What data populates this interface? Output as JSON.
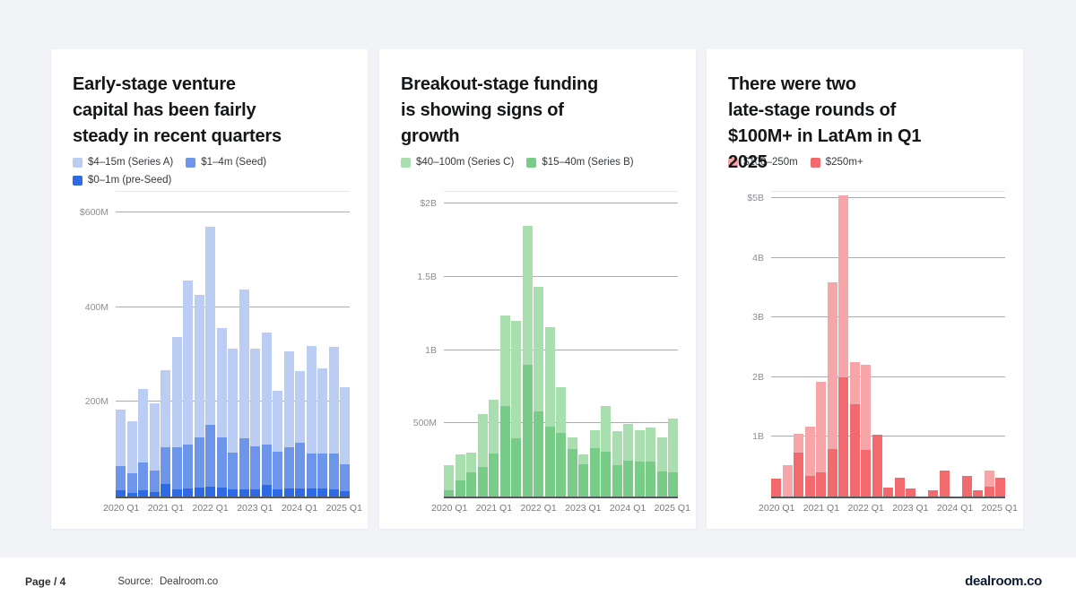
{
  "page": {
    "background_color": "#f1f3f6",
    "card_color": "#ffffff"
  },
  "footer": {
    "page_label": "Page / 4",
    "source_label": "Source:",
    "source_value": "Dealroom.co",
    "logo_text": "dealroom.co"
  },
  "chart_data": [
    {
      "type": "stacked-bar",
      "title_lines": [
        "Early-stage venture",
        "capital has been fairly",
        "steady in recent quarters"
      ],
      "unit": "USD millions",
      "ymax": 650,
      "gridlines": [
        {
          "label": "$600M",
          "value": 600
        },
        {
          "label": "400M",
          "value": 400
        },
        {
          "label": "200M",
          "value": 200
        }
      ],
      "categories": [
        "2020 Q1",
        "2020 Q2",
        "2020 Q3",
        "2020 Q4",
        "2021 Q1",
        "2021 Q2",
        "2021 Q3",
        "2021 Q4",
        "2022 Q1",
        "2022 Q2",
        "2022 Q3",
        "2022 Q4",
        "2023 Q1",
        "2023 Q2",
        "2023 Q3",
        "2023 Q4",
        "2024 Q1",
        "2024 Q2",
        "2024 Q3",
        "2024 Q4",
        "2025 Q1"
      ],
      "x_ticks": [
        {
          "label": "2020 Q1",
          "slot": 0
        },
        {
          "label": "2021 Q1",
          "slot": 4
        },
        {
          "label": "2022 Q1",
          "slot": 8
        },
        {
          "label": "2023 Q1",
          "slot": 12
        },
        {
          "label": "2024 Q1",
          "slot": 16
        },
        {
          "label": "2025 Q1",
          "slot": 20
        }
      ],
      "legend": [
        {
          "label": "$4–15m (Series A)",
          "color": "#bccdf3"
        },
        {
          "label": "$1–4m (Seed)",
          "color": "#6d96ea"
        },
        {
          "label": "$0–1m (pre-Seed)",
          "color": "#2d6ae4"
        }
      ],
      "series": [
        {
          "name": "$0–1m (pre-Seed)",
          "color": "#2d6ae4",
          "values": [
            13,
            8,
            13,
            10,
            26,
            15,
            17,
            19,
            21,
            19,
            15,
            15,
            16,
            24,
            16,
            18,
            18,
            17,
            17,
            15,
            12
          ]
        },
        {
          "name": "$1–4m (Seed)",
          "color": "#6d96ea",
          "values": [
            51,
            41,
            59,
            45,
            78,
            90,
            92,
            106,
            131,
            107,
            78,
            108,
            91,
            85,
            80,
            88,
            97,
            73,
            73,
            75,
            57
          ]
        },
        {
          "name": "$4–15m (Series A)",
          "color": "#bccdf3",
          "values": [
            119,
            109,
            155,
            143,
            163,
            233,
            347,
            301,
            419,
            232,
            219,
            315,
            207,
            236,
            128,
            203,
            152,
            228,
            180,
            226,
            163
          ]
        }
      ]
    },
    {
      "type": "stacked-bar",
      "title_lines": [
        "Breakout-stage funding",
        "is showing signs of",
        "growth"
      ],
      "unit": "USD millions",
      "ymax": 2100,
      "gridlines": [
        {
          "label": "$2B",
          "value": 2000
        },
        {
          "label": "1.5B",
          "value": 1500
        },
        {
          "label": "1B",
          "value": 1000
        },
        {
          "label": "500M",
          "value": 500
        }
      ],
      "categories": [
        "2020 Q1",
        "2020 Q2",
        "2020 Q3",
        "2020 Q4",
        "2021 Q1",
        "2021 Q2",
        "2021 Q3",
        "2021 Q4",
        "2022 Q1",
        "2022 Q2",
        "2022 Q3",
        "2022 Q4",
        "2023 Q1",
        "2023 Q2",
        "2023 Q3",
        "2023 Q4",
        "2024 Q1",
        "2024 Q2",
        "2024 Q3",
        "2024 Q4",
        "2025 Q1"
      ],
      "x_ticks": [
        {
          "label": "2020 Q1",
          "slot": 0
        },
        {
          "label": "2021 Q1",
          "slot": 4
        },
        {
          "label": "2022 Q1",
          "slot": 8
        },
        {
          "label": "2023 Q1",
          "slot": 12
        },
        {
          "label": "2024 Q1",
          "slot": 16
        },
        {
          "label": "2025 Q1",
          "slot": 20
        }
      ],
      "legend": [
        {
          "label": "$40–100m (Series C)",
          "color": "#a9dfae"
        },
        {
          "label": "$15–40m (Series B)",
          "color": "#79cc87"
        }
      ],
      "series": [
        {
          "name": "$15–40m (Series B)",
          "color": "#79cc87",
          "values": [
            40,
            112,
            166,
            200,
            292,
            616,
            400,
            900,
            580,
            480,
            436,
            326,
            220,
            332,
            306,
            212,
            246,
            240,
            236,
            172,
            166
          ]
        },
        {
          "name": "$40–100m (Series C)",
          "color": "#a9dfae",
          "values": [
            172,
            178,
            134,
            360,
            370,
            618,
            804,
            950,
            853,
            679,
            312,
            80,
            70,
            120,
            310,
            234,
            250,
            212,
            230,
            234,
            366
          ]
        }
      ]
    },
    {
      "type": "stacked-bar",
      "title_lines": [
        "There were two",
        "late-stage rounds of",
        "$100M+ in LatAm in Q1",
        "2025"
      ],
      "unit": "USD millions",
      "ymax": 5150,
      "gridlines": [
        {
          "label": "$5B",
          "value": 5000
        },
        {
          "label": "4B",
          "value": 4000
        },
        {
          "label": "3B",
          "value": 3000
        },
        {
          "label": "2B",
          "value": 2000
        },
        {
          "label": "1B",
          "value": 1000
        }
      ],
      "categories": [
        "2020 Q1",
        "2020 Q2",
        "2020 Q3",
        "2020 Q4",
        "2021 Q1",
        "2021 Q2",
        "2021 Q3",
        "2021 Q4",
        "2022 Q1",
        "2022 Q2",
        "2022 Q3",
        "2022 Q4",
        "2023 Q1",
        "2023 Q2",
        "2023 Q3",
        "2023 Q4",
        "2024 Q1",
        "2024 Q2",
        "2024 Q3",
        "2024 Q4",
        "2025 Q1"
      ],
      "x_ticks": [
        {
          "label": "2020 Q1",
          "slot": 0
        },
        {
          "label": "2021 Q1",
          "slot": 4
        },
        {
          "label": "2022 Q1",
          "slot": 8
        },
        {
          "label": "2023 Q1",
          "slot": 12
        },
        {
          "label": "2024 Q1",
          "slot": 16
        },
        {
          "label": "2025 Q1",
          "slot": 20
        }
      ],
      "legend": [
        {
          "label": "$100–250m",
          "color": "#f6a6a9"
        },
        {
          "label": "$250m+",
          "color": "#f2696e"
        }
      ],
      "series": [
        {
          "name": "$250m+",
          "color": "#f2696e",
          "values": [
            300,
            0,
            740,
            350,
            410,
            800,
            2000,
            1550,
            780,
            1030,
            150,
            310,
            130,
            0,
            100,
            430,
            0,
            340,
            110,
            170,
            310
          ]
        },
        {
          "name": "$100–250m",
          "color": "#f6a6a9",
          "values": [
            0,
            530,
            310,
            820,
            1520,
            2800,
            3050,
            700,
            1420,
            0,
            0,
            0,
            0,
            0,
            0,
            0,
            0,
            0,
            0,
            270,
            0
          ]
        }
      ]
    }
  ]
}
